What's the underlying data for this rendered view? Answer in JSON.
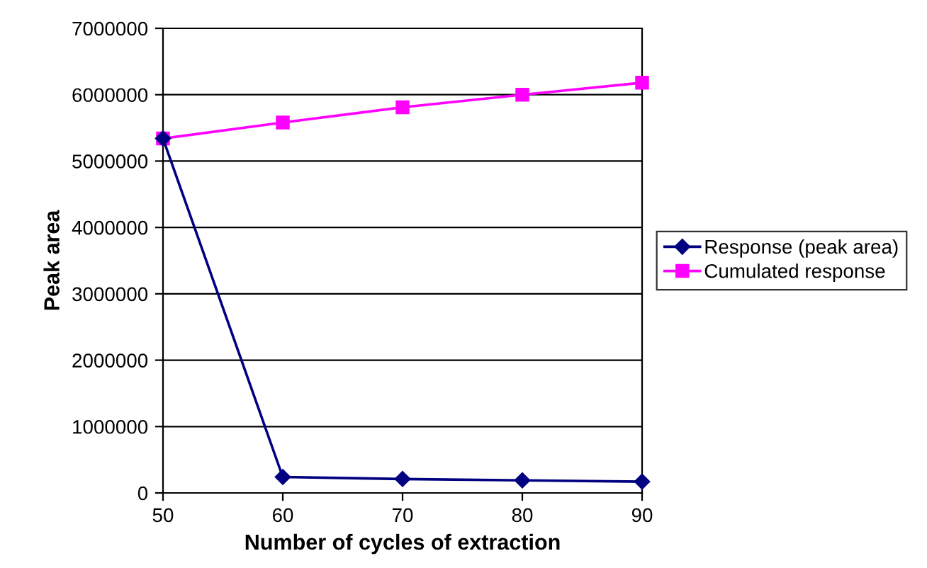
{
  "chart_data": {
    "type": "line",
    "xlabel": "Number of cycles of extraction",
    "ylabel": "Peak area",
    "x": [
      50,
      60,
      70,
      80,
      90
    ],
    "series": [
      {
        "name": "Response (peak area)",
        "color": "#000080",
        "marker": "diamond",
        "values": [
          5340000,
          240000,
          210000,
          190000,
          170000
        ]
      },
      {
        "name": "Cumulated response",
        "color": "#ff00ff",
        "marker": "square",
        "values": [
          5340000,
          5580000,
          5810000,
          6000000,
          6180000
        ]
      }
    ],
    "xlim": [
      50,
      90
    ],
    "xticks": [
      50,
      60,
      70,
      80,
      90
    ],
    "ylim": [
      0,
      7000000
    ],
    "yticks": [
      0,
      1000000,
      2000000,
      3000000,
      4000000,
      5000000,
      6000000,
      7000000
    ],
    "grid": "y",
    "legend": "right",
    "line_style": "solid"
  }
}
